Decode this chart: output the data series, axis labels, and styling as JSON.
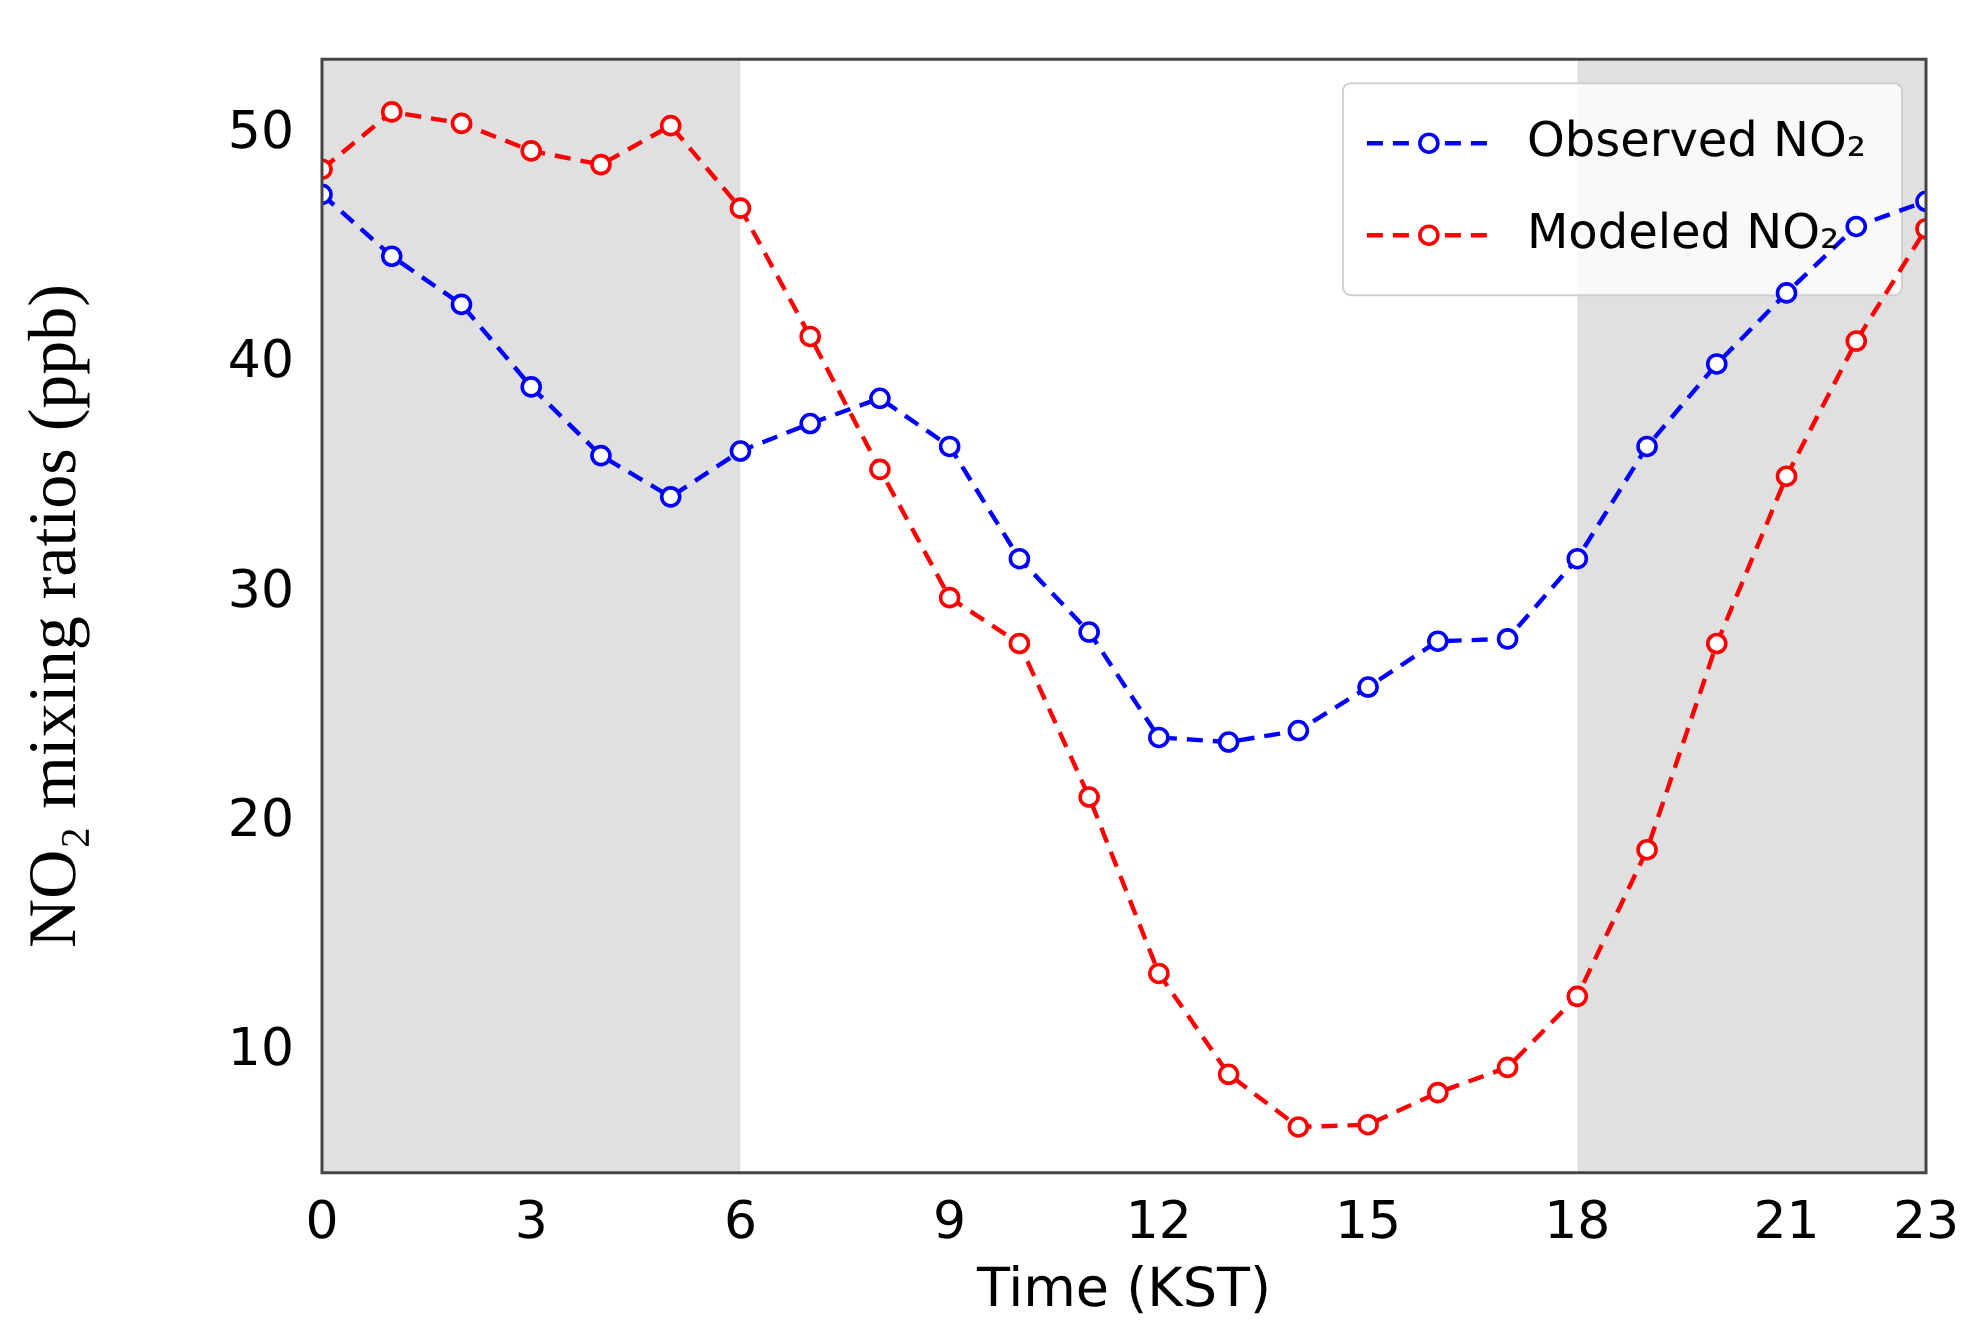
{
  "chart_data": {
    "type": "line",
    "xlabel": "Time (KST)",
    "ylabel": "NO₂ mixing ratios (ppb)",
    "x": [
      0,
      1,
      2,
      3,
      4,
      5,
      6,
      7,
      8,
      9,
      10,
      11,
      12,
      13,
      14,
      15,
      16,
      17,
      18,
      19,
      20,
      21,
      22,
      23
    ],
    "series": [
      {
        "name": "Observed NO₂",
        "color": "#0000ff",
        "values": [
          47.4,
          44.7,
          42.6,
          39.0,
          36.0,
          34.2,
          36.2,
          37.4,
          38.5,
          36.4,
          31.5,
          28.3,
          23.7,
          23.5,
          24.0,
          25.9,
          27.9,
          28.0,
          31.5,
          36.4,
          40.0,
          43.1,
          46.0,
          47.1
        ]
      },
      {
        "name": "Modeled NO₂",
        "color": "#ff0000",
        "values": [
          48.5,
          51.0,
          50.5,
          49.3,
          48.7,
          50.4,
          46.8,
          41.2,
          35.4,
          29.8,
          27.8,
          21.1,
          13.4,
          9.0,
          6.7,
          6.8,
          8.2,
          9.3,
          12.4,
          18.8,
          27.8,
          35.1,
          41.0,
          45.9
        ]
      }
    ],
    "xlim": [
      0,
      23
    ],
    "xticks": [
      0,
      3,
      6,
      9,
      12,
      15,
      18,
      21,
      23
    ],
    "ylim": [
      4.7,
      53.3
    ],
    "yticks": [
      10,
      20,
      30,
      40,
      50
    ],
    "bands": [
      {
        "axis": "x",
        "from": 0,
        "to": 6,
        "color": "#e0e0e0"
      },
      {
        "axis": "x",
        "from": 18,
        "to": 23,
        "color": "#e0e0e0"
      }
    ],
    "grid": false,
    "legend": "top right",
    "marker": "circle",
    "line_style": "dashed"
  }
}
